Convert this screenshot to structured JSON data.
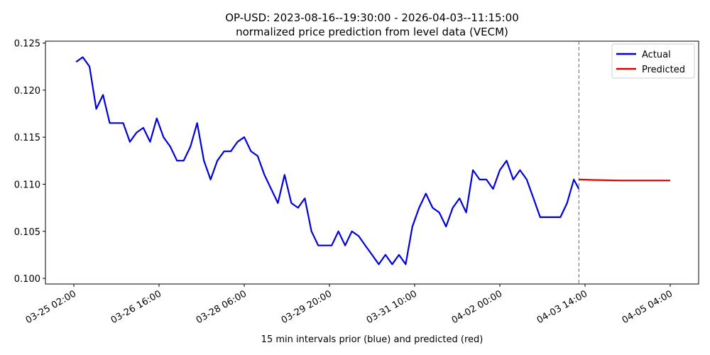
{
  "chart_data": {
    "type": "line",
    "title": "OP-USD: 2023-08-16--19:30:00 - 2026-04-03--11:15:00",
    "subtitle": "normalized price prediction from level data (VECM)",
    "xlabel": "15 min intervals prior (blue) and predicted (red)",
    "xlim": [
      "03-24 13:20",
      "04-05 16:40"
    ],
    "xticks": [
      "03-25 02:00",
      "03-26 16:00",
      "03-28 06:00",
      "03-29 20:00",
      "03-31 10:00",
      "04-02 00:00",
      "04-03 14:00",
      "04-05 04:00"
    ],
    "ylim": [
      0.0994,
      0.1252
    ],
    "yticks": [
      {
        "value": 0.1,
        "label": "0.100"
      },
      0.105,
      {
        "value": 0.11,
        "label": "0.110"
      },
      0.115,
      {
        "value": 0.12,
        "label": "0.120"
      },
      0.125
    ],
    "vline": "04-03 11:15",
    "legend": "upper right",
    "series": [
      {
        "name": "Actual",
        "color": "#0000dd",
        "x": [
          "03-25 03:00",
          "03-25 06:00",
          "03-25 09:00",
          "03-25 12:00",
          "03-25 15:00",
          "03-25 18:00",
          "03-25 21:00",
          "03-26 00:00",
          "03-26 03:00",
          "03-26 06:00",
          "03-26 09:00",
          "03-26 12:00",
          "03-26 15:00",
          "03-26 18:00",
          "03-26 21:00",
          "03-27 00:00",
          "03-27 03:00",
          "03-27 06:00",
          "03-27 09:00",
          "03-27 12:00",
          "03-27 15:00",
          "03-27 18:00",
          "03-27 21:00",
          "03-28 00:00",
          "03-28 03:00",
          "03-28 06:00",
          "03-28 09:00",
          "03-28 12:00",
          "03-28 15:00",
          "03-28 18:00",
          "03-28 21:00",
          "03-29 00:00",
          "03-29 03:00",
          "03-29 06:00",
          "03-29 09:00",
          "03-29 12:00",
          "03-29 15:00",
          "03-29 18:00",
          "03-29 21:00",
          "03-30 00:00",
          "03-30 03:00",
          "03-30 06:00",
          "03-30 09:00",
          "03-30 12:00",
          "03-30 15:00",
          "03-30 18:00",
          "03-30 21:00",
          "03-31 00:00",
          "03-31 03:00",
          "03-31 06:00",
          "03-31 09:00",
          "03-31 12:00",
          "03-31 15:00",
          "03-31 18:00",
          "03-31 21:00",
          "04-01 00:00",
          "04-01 03:00",
          "04-01 06:00",
          "04-01 09:00",
          "04-01 12:00",
          "04-01 15:00",
          "04-01 18:00",
          "04-01 21:00",
          "04-02 00:00",
          "04-02 03:00",
          "04-02 06:00",
          "04-02 09:00",
          "04-02 12:00",
          "04-02 15:00",
          "04-02 18:00",
          "04-02 21:00",
          "04-03 00:00",
          "04-03 03:00",
          "04-03 06:00",
          "04-03 09:00",
          "04-03 11:15"
        ],
        "values": [
          0.123,
          0.1235,
          0.1225,
          0.118,
          0.1195,
          0.1165,
          0.1165,
          0.1165,
          0.1145,
          0.1155,
          0.116,
          0.1145,
          0.117,
          0.115,
          0.114,
          0.1125,
          0.1125,
          0.114,
          0.1165,
          0.1125,
          0.1105,
          0.1125,
          0.1135,
          0.1135,
          0.1145,
          0.115,
          0.1135,
          0.113,
          0.111,
          0.1095,
          0.108,
          0.111,
          0.108,
          0.1075,
          0.1085,
          0.105,
          0.1035,
          0.1035,
          0.1035,
          0.105,
          0.1035,
          0.105,
          0.1045,
          0.1035,
          0.1025,
          0.1015,
          0.1025,
          0.1015,
          0.1025,
          0.1015,
          0.1055,
          0.1075,
          0.109,
          0.1075,
          0.107,
          0.1055,
          0.1075,
          0.1085,
          0.107,
          0.1115,
          0.1105,
          0.1105,
          0.1095,
          0.1115,
          0.1125,
          0.1105,
          0.1115,
          0.1105,
          0.1085,
          0.1065,
          0.1065,
          0.1065,
          0.1065,
          0.108,
          0.1105,
          0.1095
        ]
      },
      {
        "name": "Predicted",
        "color": "#dd0000",
        "x": [
          "04-03 11:15",
          "04-03 18:00",
          "04-04 06:00",
          "04-04 18:00",
          "04-05 04:00"
        ],
        "values": [
          0.1105,
          0.11045,
          0.1104,
          0.1104,
          0.1104
        ]
      }
    ]
  }
}
